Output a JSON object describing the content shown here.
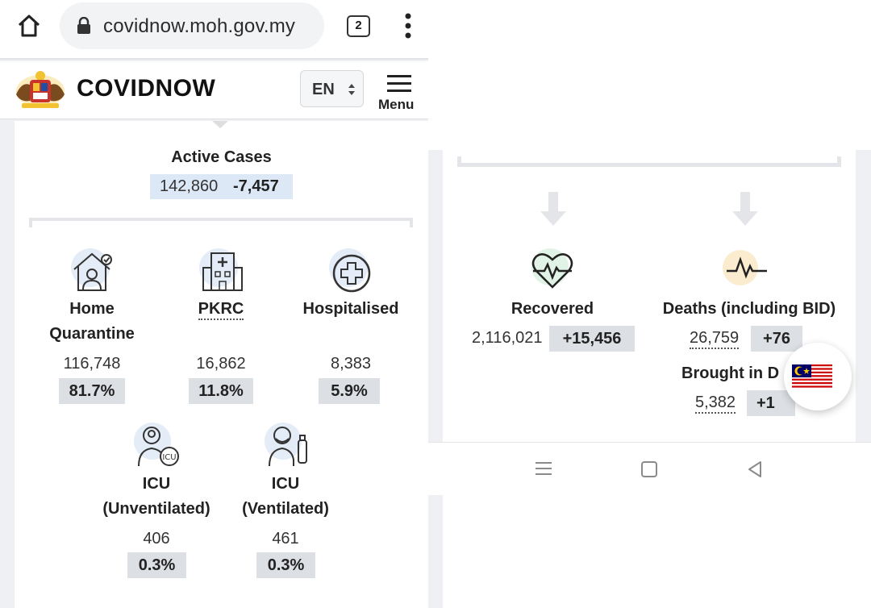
{
  "browser": {
    "url": "covidnow.moh.gov.my",
    "tab_count": "2"
  },
  "header": {
    "title": "COVIDNOW",
    "language": "EN",
    "menu_label": "Menu"
  },
  "active_cases": {
    "label": "Active Cases",
    "value": "142,860",
    "delta": "-7,457"
  },
  "breakdown": [
    {
      "label_line1": "Home",
      "label_line2": "Quarantine",
      "value": "116,748",
      "percent": "81.7%"
    },
    {
      "label_line1": "PKRC",
      "value": "16,862",
      "percent": "11.8%"
    },
    {
      "label_line1": "Hospitalised",
      "value": "8,383",
      "percent": "5.9%"
    },
    {
      "label_line1": "ICU",
      "label_line2": "(Unventilated)",
      "value": "406",
      "percent": "0.3%"
    },
    {
      "label_line1": "ICU",
      "label_line2": "(Ventilated)",
      "value": "461",
      "percent": "0.3%"
    }
  ],
  "outcomes": {
    "recovered": {
      "label": "Recovered",
      "value": "2,116,021",
      "delta": "+15,456"
    },
    "deaths": {
      "label": "Deaths (including BID)",
      "value": "26,759",
      "delta": "+76"
    },
    "bid": {
      "label": "Brought in D",
      "value": "5,382",
      "delta": "+1"
    }
  },
  "icons": {
    "home": "home-icon",
    "lock": "lock-icon",
    "more": "more-vert-icon",
    "menu": "hamburger-icon",
    "heart": "heartbeat-icon",
    "pulse": "pulse-icon",
    "flag": "malaysia-flag-icon"
  },
  "colors": {
    "accent_bg": "#e3ecf7",
    "chip_bg": "#dcdfe4",
    "deaths_icon_bg": "#fbecd0",
    "recovered_icon_bg": "#e1f3e6"
  }
}
